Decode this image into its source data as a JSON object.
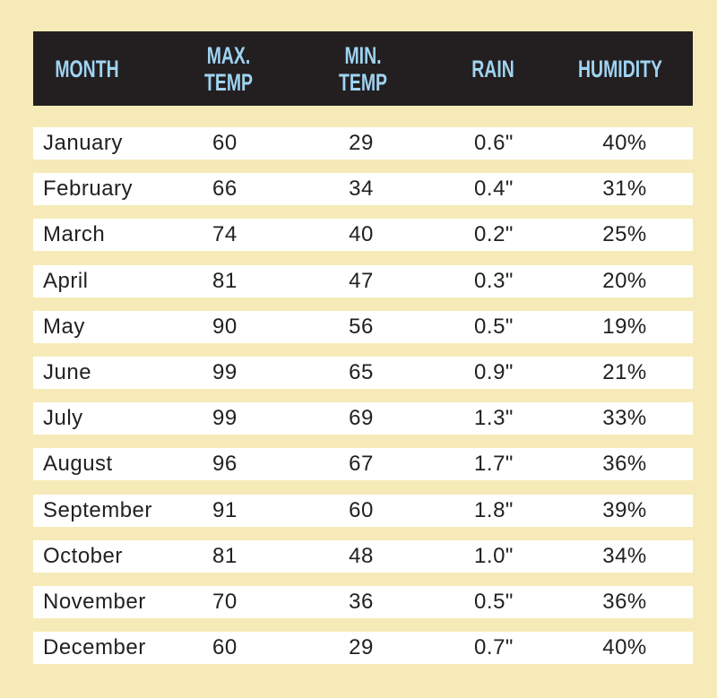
{
  "table": {
    "header": [
      "MONTH",
      "MAX. TEMP",
      "MIN. TEMP",
      "RAIN",
      "HUMIDITY"
    ],
    "rows": [
      [
        "January",
        "60",
        "29",
        "0.6\"",
        "40%"
      ],
      [
        "February",
        "66",
        "34",
        "0.4\"",
        "31%"
      ],
      [
        "March",
        "74",
        "40",
        "0.2\"",
        "25%"
      ],
      [
        "April",
        "81",
        "47",
        "0.3\"",
        "20%"
      ],
      [
        "May",
        "90",
        "56",
        "0.5\"",
        "19%"
      ],
      [
        "June",
        "99",
        "65",
        "0.9\"",
        "21%"
      ],
      [
        "July",
        "99",
        "69",
        "1.3\"",
        "33%"
      ],
      [
        "August",
        "96",
        "67",
        "1.7\"",
        "36%"
      ],
      [
        "September",
        "91",
        "60",
        "1.8\"",
        "39%"
      ],
      [
        "October",
        "81",
        "48",
        "1.0\"",
        "34%"
      ],
      [
        "November",
        "70",
        "36",
        "0.5\"",
        "36%"
      ],
      [
        "December",
        "60",
        "29",
        "0.7\"",
        "40%"
      ]
    ]
  }
}
